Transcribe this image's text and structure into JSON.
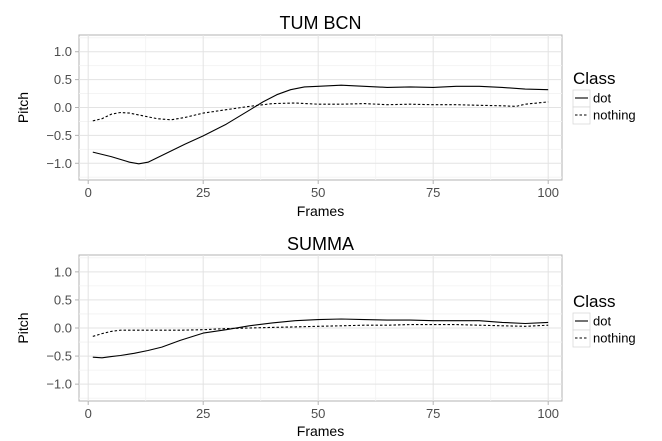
{
  "chart_data": [
    {
      "type": "line",
      "title": "TUM BCN",
      "xlabel": "Frames",
      "ylabel": "Pitch",
      "xlim": [
        -2,
        103
      ],
      "ylim": [
        -1.3,
        1.3
      ],
      "xticks": [
        0,
        25,
        50,
        75,
        100
      ],
      "yticks": [
        -1.0,
        -0.5,
        0.0,
        0.5,
        1.0
      ],
      "ytick_labels": [
        "−1.0",
        "−0.5",
        "0.0",
        "0.5",
        "1.0"
      ],
      "grid": true,
      "legend": {
        "title": "Class",
        "position": "right"
      },
      "series": [
        {
          "name": "dot",
          "style": "solid",
          "x": [
            1,
            5,
            9,
            11,
            13,
            17,
            21,
            25,
            30,
            35,
            38,
            41,
            44,
            47,
            50,
            55,
            60,
            65,
            70,
            75,
            80,
            85,
            90,
            95,
            100
          ],
          "y": [
            -0.8,
            -0.88,
            -0.98,
            -1.01,
            -0.98,
            -0.82,
            -0.66,
            -0.51,
            -0.3,
            -0.05,
            0.1,
            0.23,
            0.32,
            0.37,
            0.38,
            0.4,
            0.38,
            0.36,
            0.37,
            0.36,
            0.38,
            0.38,
            0.36,
            0.33,
            0.32
          ]
        },
        {
          "name": "nothing",
          "style": "dashed",
          "x": [
            1,
            3,
            5,
            7,
            9,
            12,
            15,
            18,
            21,
            25,
            30,
            35,
            40,
            45,
            50,
            55,
            60,
            65,
            70,
            75,
            80,
            85,
            90,
            93,
            95,
            100
          ],
          "y": [
            -0.24,
            -0.2,
            -0.12,
            -0.09,
            -0.1,
            -0.15,
            -0.2,
            -0.22,
            -0.18,
            -0.1,
            -0.04,
            0.02,
            0.07,
            0.08,
            0.06,
            0.06,
            0.07,
            0.05,
            0.06,
            0.05,
            0.05,
            0.04,
            0.03,
            0.02,
            0.06,
            0.1
          ]
        }
      ]
    },
    {
      "type": "line",
      "title": "SUMMA",
      "xlabel": "Frames",
      "ylabel": "Pitch",
      "xlim": [
        -2,
        103
      ],
      "ylim": [
        -1.3,
        1.3
      ],
      "xticks": [
        0,
        25,
        50,
        75,
        100
      ],
      "yticks": [
        -1.0,
        -0.5,
        0.0,
        0.5,
        1.0
      ],
      "ytick_labels": [
        "−1.0",
        "−0.5",
        "0.0",
        "0.5",
        "1.0"
      ],
      "grid": true,
      "legend": {
        "title": "Class",
        "position": "right"
      },
      "series": [
        {
          "name": "dot",
          "style": "solid",
          "x": [
            1,
            3,
            5,
            7,
            10,
            13,
            16,
            20,
            25,
            30,
            35,
            40,
            45,
            50,
            55,
            60,
            65,
            70,
            75,
            80,
            85,
            90,
            95,
            100
          ],
          "y": [
            -0.52,
            -0.53,
            -0.51,
            -0.49,
            -0.45,
            -0.4,
            -0.34,
            -0.22,
            -0.09,
            -0.03,
            0.04,
            0.09,
            0.13,
            0.15,
            0.16,
            0.15,
            0.14,
            0.14,
            0.13,
            0.13,
            0.13,
            0.1,
            0.08,
            0.1
          ]
        },
        {
          "name": "nothing",
          "style": "dashed",
          "x": [
            1,
            3,
            5,
            7,
            10,
            15,
            20,
            25,
            30,
            35,
            40,
            45,
            50,
            55,
            60,
            65,
            70,
            75,
            80,
            85,
            90,
            95,
            100
          ],
          "y": [
            -0.15,
            -0.1,
            -0.06,
            -0.04,
            -0.04,
            -0.04,
            -0.04,
            -0.03,
            -0.01,
            0.0,
            0.01,
            0.02,
            0.03,
            0.04,
            0.05,
            0.05,
            0.06,
            0.06,
            0.06,
            0.05,
            0.04,
            0.03,
            0.05
          ]
        }
      ]
    }
  ]
}
